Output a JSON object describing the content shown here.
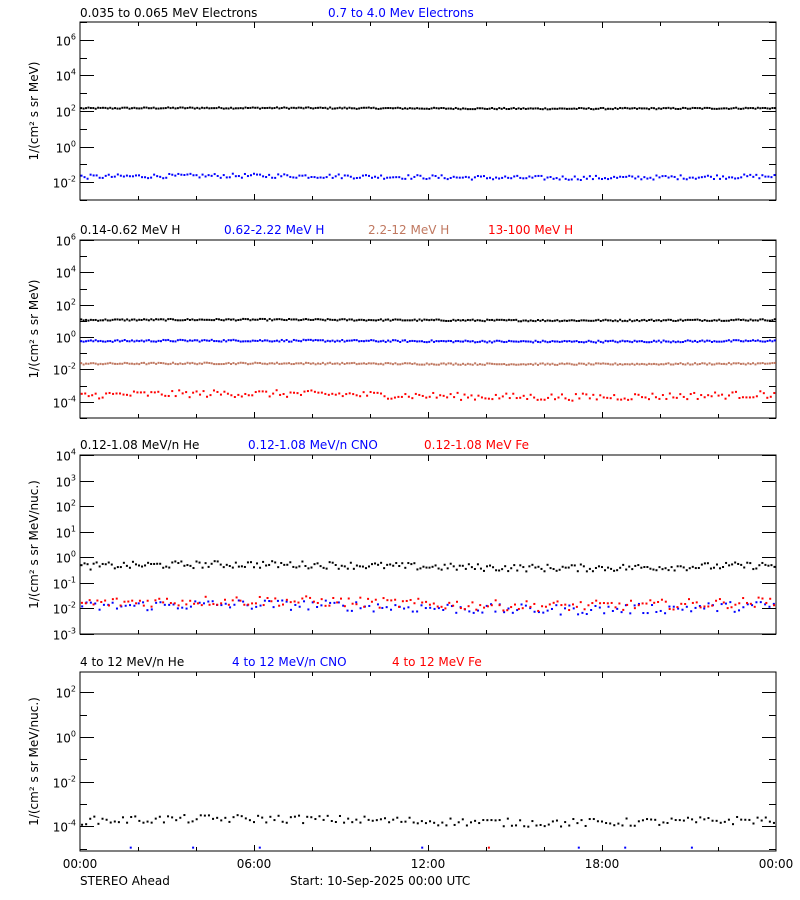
{
  "footer": {
    "spacecraft": "STEREO Ahead",
    "start": "Start: 10-Sep-2025 00:00 UTC"
  },
  "x_axis": {
    "tick_labels": [
      "00:00",
      "06:00",
      "12:00",
      "18:00",
      "00:00"
    ],
    "hours": [
      0,
      6,
      12,
      18,
      24
    ],
    "minor_every_hours": 2
  },
  "colors": {
    "black": "#000000",
    "blue": "#0000ff",
    "tan": "#c07860",
    "red": "#ff0000",
    "axis": "#000000"
  },
  "chart_data": [
    {
      "type": "scatter",
      "panel": 1,
      "title_parts": [
        {
          "text": "0.035 to 0.065 MeV Electrons",
          "color": "#000000"
        },
        {
          "text": "0.7 to 4.0 Mev Electrons",
          "color": "#0000ff"
        }
      ],
      "ylabel": "1/(cm² s sr MeV)",
      "yscale": "log",
      "ylim_exp": [
        -3,
        7
      ],
      "y_tick_exps": [
        -2,
        0,
        2,
        4,
        6
      ],
      "xlabel": "",
      "series": [
        {
          "name": "0.035 to 0.065 MeV Electrons",
          "color": "#000000",
          "baseline_exp": 2.15,
          "jitter_exp": 0.04,
          "n": 288
        },
        {
          "name": "0.7 to 4.0 Mev Electrons",
          "color": "#0000ff",
          "baseline_exp": -1.7,
          "jitter_exp": 0.12,
          "n": 230
        }
      ]
    },
    {
      "type": "scatter",
      "panel": 2,
      "title_parts": [
        {
          "text": "0.14-0.62 MeV H",
          "color": "#000000"
        },
        {
          "text": "0.62-2.22 MeV H",
          "color": "#0000ff"
        },
        {
          "text": "2.2-12 MeV H",
          "color": "#c07860"
        },
        {
          "text": "13-100 MeV H",
          "color": "#ff0000"
        }
      ],
      "ylabel": "1/(cm² s sr MeV)",
      "yscale": "log",
      "ylim_exp": [
        -5,
        6
      ],
      "y_tick_exps": [
        -4,
        -2,
        0,
        2,
        4,
        6
      ],
      "series": [
        {
          "name": "0.14-0.62 MeV H",
          "color": "#000000",
          "baseline_exp": 1.05,
          "jitter_exp": 0.05,
          "n": 288
        },
        {
          "name": "0.62-2.22 MeV H",
          "color": "#0000ff",
          "baseline_exp": -0.25,
          "jitter_exp": 0.06,
          "n": 288
        },
        {
          "name": "2.2-12 MeV H",
          "color": "#c07860",
          "baseline_exp": -1.65,
          "jitter_exp": 0.05,
          "n": 288
        },
        {
          "name": "13-100 MeV H",
          "color": "#ff0000",
          "baseline_exp": -3.6,
          "jitter_exp": 0.22,
          "n": 200
        }
      ]
    },
    {
      "type": "scatter",
      "panel": 3,
      "title_parts": [
        {
          "text": "0.12-1.08 MeV/n He",
          "color": "#000000"
        },
        {
          "text": "0.12-1.08 MeV/n CNO",
          "color": "#0000ff"
        },
        {
          "text": "0.12-1.08 MeV Fe",
          "color": "#ff0000"
        }
      ],
      "ylabel": "1/(cm² s sr MeV/nuc.)",
      "yscale": "log",
      "ylim_exp": [
        -3,
        4
      ],
      "y_tick_exps": [
        -3,
        -2,
        -1,
        0,
        1,
        2,
        3,
        4
      ],
      "series": [
        {
          "name": "0.12-1.08 MeV/n He",
          "color": "#000000",
          "baseline_exp": -0.35,
          "jitter_exp": 0.14,
          "n": 230
        },
        {
          "name": "0.12-1.08 MeV/n CNO",
          "color": "#0000ff",
          "baseline_exp": -1.95,
          "jitter_exp": 0.2,
          "n": 160
        },
        {
          "name": "0.12-1.08 MeV Fe",
          "color": "#ff0000",
          "baseline_exp": -1.8,
          "jitter_exp": 0.2,
          "n": 180
        }
      ]
    },
    {
      "type": "scatter",
      "panel": 4,
      "title_parts": [
        {
          "text": "4 to 12 MeV/n He",
          "color": "#000000"
        },
        {
          "text": "4 to 12 MeV/n CNO",
          "color": "#0000ff"
        },
        {
          "text": "4 to 12 MeV Fe",
          "color": "#ff0000"
        }
      ],
      "ylabel": "1/(cm² s sr MeV/nuc.)",
      "yscale": "log",
      "ylim_exp": [
        -5.1,
        2.9
      ],
      "y_tick_exps": [
        -4,
        -2,
        0,
        2
      ],
      "xlabel": "",
      "series": [
        {
          "name": "4 to 12 MeV/n He",
          "color": "#000000",
          "baseline_exp": -3.75,
          "jitter_exp": 0.18,
          "n": 170
        },
        {
          "name": "4 to 12 MeV/n CNO",
          "color": "#0000ff",
          "points_hours": [
            1.75,
            3.9,
            6.2,
            11.8,
            17.2,
            18.8,
            21.1
          ],
          "points_exp": [
            -4.95,
            -4.95,
            -4.95,
            -4.95,
            -4.95,
            -4.95,
            -4.95
          ]
        },
        {
          "name": "4 to 12 MeV Fe",
          "color": "#ff0000",
          "points_hours": [
            14.1
          ],
          "points_exp": [
            -4.95
          ]
        }
      ]
    }
  ]
}
